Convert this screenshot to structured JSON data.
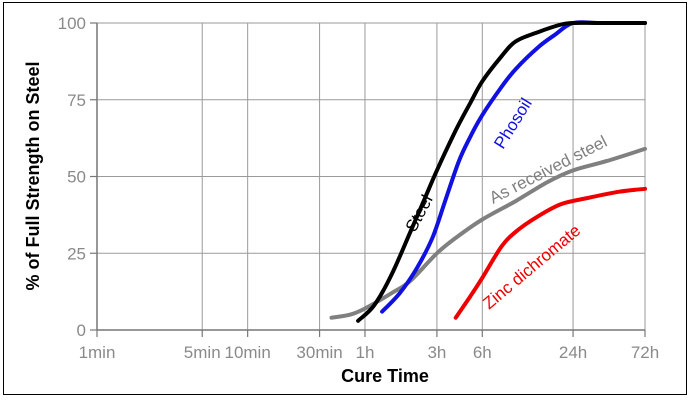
{
  "chart_data": {
    "type": "line",
    "xlabel": "Cure Time",
    "ylabel": "% of Full Strength on Steel",
    "x_scale": "log",
    "x_unit": "hours",
    "xlim": [
      0.0167,
      72
    ],
    "ylim": [
      0,
      100
    ],
    "grid": true,
    "legend": "none (labels placed next to each curve)",
    "x_ticks": [
      {
        "label": "1min",
        "value": 0.0167
      },
      {
        "label": "5min",
        "value": 0.0833
      },
      {
        "label": "10min",
        "value": 0.1667
      },
      {
        "label": "30min",
        "value": 0.5
      },
      {
        "label": "1h",
        "value": 1
      },
      {
        "label": "3h",
        "value": 3
      },
      {
        "label": "6h",
        "value": 6
      },
      {
        "label": "24h",
        "value": 24
      },
      {
        "label": "72h",
        "value": 72
      }
    ],
    "y_ticks": [
      {
        "label": "0",
        "value": 0
      },
      {
        "label": "25",
        "value": 25
      },
      {
        "label": "50",
        "value": 50
      },
      {
        "label": "75",
        "value": 75
      },
      {
        "label": "100",
        "value": 100
      }
    ],
    "series": [
      {
        "name": "Steel",
        "color": "#000000",
        "points": [
          [
            0.9,
            3
          ],
          [
            1.15,
            8
          ],
          [
            1.5,
            18
          ],
          [
            2.0,
            32
          ],
          [
            2.5,
            43
          ],
          [
            3.0,
            52
          ],
          [
            4.0,
            65
          ],
          [
            5.0,
            74
          ],
          [
            6.0,
            81
          ],
          [
            8.0,
            89
          ],
          [
            10,
            94
          ],
          [
            14,
            97
          ],
          [
            20,
            99.5
          ],
          [
            24,
            100
          ],
          [
            36,
            100
          ],
          [
            72,
            100
          ]
        ]
      },
      {
        "name": "Phosoil",
        "color": "#1010e0",
        "points": [
          [
            1.3,
            6
          ],
          [
            1.7,
            12
          ],
          [
            2.2,
            20
          ],
          [
            2.8,
            30
          ],
          [
            3.4,
            42
          ],
          [
            4.2,
            55
          ],
          [
            5.0,
            63
          ],
          [
            6.0,
            70
          ],
          [
            8.0,
            79
          ],
          [
            10,
            85
          ],
          [
            14,
            92
          ],
          [
            18,
            96
          ],
          [
            24,
            100
          ],
          [
            36,
            100
          ],
          [
            72,
            100
          ]
        ]
      },
      {
        "name": "As received steel",
        "color": "#808080",
        "points": [
          [
            0.6,
            4
          ],
          [
            0.8,
            5
          ],
          [
            1.0,
            7
          ],
          [
            1.5,
            12
          ],
          [
            2.0,
            16
          ],
          [
            3.0,
            25
          ],
          [
            4.0,
            30
          ],
          [
            6.0,
            36
          ],
          [
            10,
            42
          ],
          [
            16,
            48
          ],
          [
            24,
            52
          ],
          [
            40,
            55
          ],
          [
            72,
            59
          ]
        ]
      },
      {
        "name": "Zinc dichromate",
        "color": "#ee0000",
        "points": [
          [
            4.0,
            4
          ],
          [
            5.0,
            11
          ],
          [
            6.0,
            17
          ],
          [
            8.0,
            27
          ],
          [
            10,
            32
          ],
          [
            14,
            37
          ],
          [
            20,
            41
          ],
          [
            30,
            43
          ],
          [
            48,
            45
          ],
          [
            72,
            46
          ]
        ]
      }
    ]
  }
}
